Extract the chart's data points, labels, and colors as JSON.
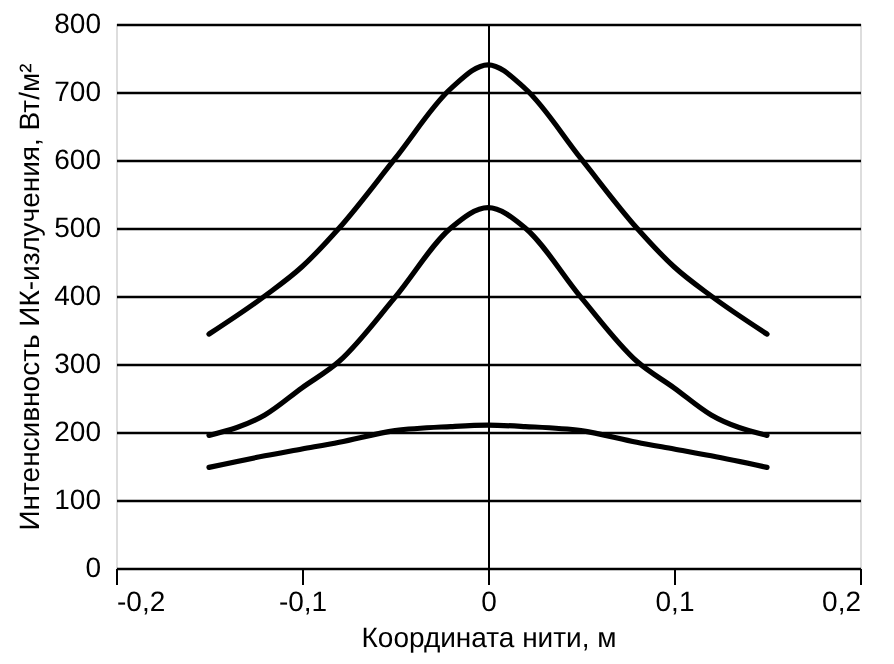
{
  "chart_data": {
    "type": "line",
    "xlabel": "Координата нити, м",
    "ylabel": "Интенсивность ИК-излучения, Вт/м²",
    "x": [
      -0.15,
      -0.12,
      -0.1,
      -0.08,
      -0.05,
      -0.02,
      0,
      0.02,
      0.05,
      0.08,
      0.1,
      0.12,
      0.15
    ],
    "series": [
      {
        "color": "#000000",
        "values": [
          344,
          400,
          443,
          500,
          602,
          705,
          740,
          705,
          602,
          500,
          443,
          400,
          344
        ]
      },
      {
        "color": "#000000",
        "values": [
          195,
          225,
          265,
          304,
          398,
          500,
          530,
          500,
          398,
          304,
          265,
          225,
          195
        ]
      },
      {
        "color": "#000000",
        "values": [
          148,
          165,
          175,
          185,
          202,
          208,
          210,
          208,
          202,
          185,
          175,
          165,
          148
        ]
      }
    ],
    "xlim": [
      -0.2,
      0.2
    ],
    "ylim": [
      0,
      800
    ],
    "xticks": [
      {
        "value": -0.2,
        "label": "-0,2"
      },
      {
        "value": -0.1,
        "label": "-0,1"
      },
      {
        "value": 0,
        "label": "0"
      },
      {
        "value": 0.1,
        "label": "0,1"
      },
      {
        "value": 0.2,
        "label": "0,2"
      }
    ],
    "yticks": [
      0,
      100,
      200,
      300,
      400,
      500,
      600,
      700,
      800
    ],
    "grid": "y",
    "legend": false,
    "marker": "none",
    "line_style": "solid"
  }
}
